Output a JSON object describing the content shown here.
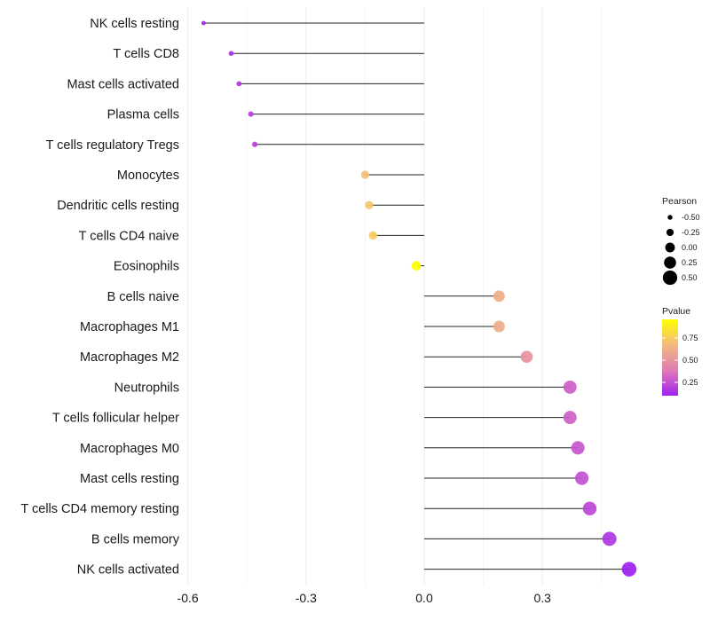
{
  "chart_data": {
    "type": "lollipop",
    "categories": [
      "NK cells resting",
      "T cells CD8",
      "Mast cells activated",
      "Plasma cells",
      "T cells regulatory  Tregs ",
      "Monocytes",
      "Dendritic cells resting",
      "T cells CD4 naive",
      "Eosinophils",
      "B cells naive",
      "Macrophages M1",
      "Macrophages M2",
      "Neutrophils",
      "T cells follicular helper",
      "Macrophages M0",
      "Mast cells resting",
      "T cells CD4 memory resting",
      "B cells memory",
      "NK cells activated"
    ],
    "values": [
      -0.56,
      -0.49,
      -0.47,
      -0.44,
      -0.43,
      -0.15,
      -0.14,
      -0.13,
      -0.02,
      0.19,
      0.19,
      0.26,
      0.37,
      0.37,
      0.39,
      0.4,
      0.42,
      0.47,
      0.52
    ],
    "pvalues": [
      0.12,
      0.15,
      0.17,
      0.19,
      0.2,
      0.7,
      0.72,
      0.74,
      0.96,
      0.62,
      0.62,
      0.5,
      0.3,
      0.3,
      0.27,
      0.25,
      0.22,
      0.17,
      0.1
    ],
    "xlim": [
      -0.6,
      0.55
    ],
    "xticks": [
      -0.6,
      -0.3,
      0.0,
      0.3
    ],
    "xtick_labels": [
      "-0.6",
      "-0.3",
      "0.0",
      "0.3"
    ],
    "size_legend": {
      "title": "Pearson",
      "breaks": [
        -0.5,
        -0.25,
        0.0,
        0.25,
        0.5
      ],
      "labels": [
        "-0.50",
        "-0.25",
        "0.00",
        "0.25",
        "0.50"
      ]
    },
    "color_legend": {
      "title": "Pvalue",
      "range": [
        0.1,
        0.96
      ],
      "breaks": [
        0.75,
        0.5,
        0.25
      ],
      "labels": [
        "0.75",
        "0.50",
        "0.25"
      ],
      "colors": [
        "#a020f0",
        "#e07bb5",
        "#f2ba80",
        "#ffff00"
      ]
    }
  }
}
